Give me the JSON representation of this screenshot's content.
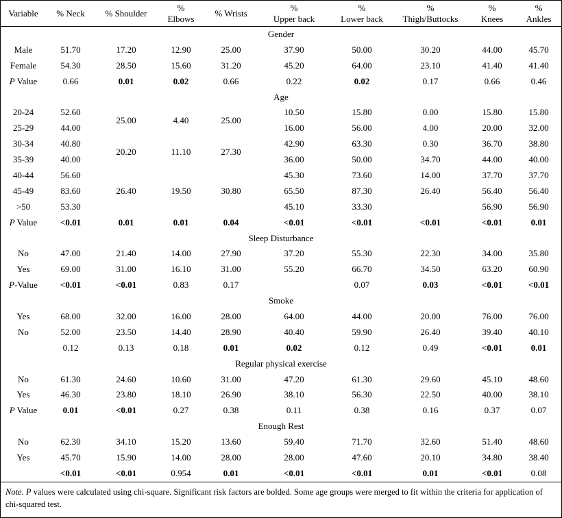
{
  "table": {
    "columns": [
      {
        "lines": [
          "Variable"
        ]
      },
      {
        "lines": [
          "% Neck"
        ]
      },
      {
        "lines": [
          "% Shoulder"
        ]
      },
      {
        "lines": [
          "%",
          "Elbows"
        ]
      },
      {
        "lines": [
          "% Wrists"
        ]
      },
      {
        "lines": [
          "%",
          "Upper back"
        ]
      },
      {
        "lines": [
          "%",
          "Lower back"
        ]
      },
      {
        "lines": [
          "%",
          "Thigh/Buttocks"
        ]
      },
      {
        "lines": [
          "%",
          "Knees"
        ]
      },
      {
        "lines": [
          "%",
          "Ankles"
        ]
      }
    ],
    "sections": [
      {
        "title": "Gender",
        "rows": [
          {
            "label": "Male",
            "cells": [
              {
                "v": "51.70"
              },
              {
                "v": "17.20"
              },
              {
                "v": "12.90"
              },
              {
                "v": "25.00"
              },
              {
                "v": "37.90"
              },
              {
                "v": "50.00"
              },
              {
                "v": "30.20"
              },
              {
                "v": "44.00"
              },
              {
                "v": "45.70"
              }
            ]
          },
          {
            "label": "Female",
            "cells": [
              {
                "v": "54.30"
              },
              {
                "v": "28.50"
              },
              {
                "v": "15.60"
              },
              {
                "v": "31.20"
              },
              {
                "v": "45.20"
              },
              {
                "v": "64.00"
              },
              {
                "v": "23.10"
              },
              {
                "v": "41.40"
              },
              {
                "v": "41.40"
              }
            ]
          },
          {
            "label": "P Value",
            "italic_p": true,
            "cells": [
              {
                "v": "0.66"
              },
              {
                "v": "0.01",
                "b": true
              },
              {
                "v": "0.02",
                "b": true
              },
              {
                "v": "0.66"
              },
              {
                "v": "0.22"
              },
              {
                "v": "0.02",
                "b": true
              },
              {
                "v": "0.17"
              },
              {
                "v": "0.66"
              },
              {
                "v": "0.46"
              }
            ]
          }
        ]
      },
      {
        "title": "Age",
        "rows": [
          {
            "label": "20-24",
            "cells": [
              {
                "v": "52.60"
              },
              {
                "v": "25.00",
                "rs": 2
              },
              {
                "v": "4.40",
                "rs": 2
              },
              {
                "v": "25.00",
                "rs": 2
              },
              {
                "v": "10.50"
              },
              {
                "v": "15.80"
              },
              {
                "v": "0.00"
              },
              {
                "v": "15.80"
              },
              {
                "v": "15.80"
              }
            ]
          },
          {
            "label": "25-29",
            "cells": [
              {
                "v": "44.00"
              },
              null,
              null,
              null,
              {
                "v": "16.00"
              },
              {
                "v": "56.00"
              },
              {
                "v": "4.00"
              },
              {
                "v": "20.00"
              },
              {
                "v": "32.00"
              }
            ]
          },
          {
            "label": "30-34",
            "cells": [
              {
                "v": "40.80"
              },
              {
                "v": "20.20",
                "rs": 2
              },
              {
                "v": "11.10",
                "rs": 2
              },
              {
                "v": "27.30",
                "rs": 2
              },
              {
                "v": "42.90"
              },
              {
                "v": "63.30"
              },
              {
                "v": "0.30"
              },
              {
                "v": "36.70"
              },
              {
                "v": "38.80"
              }
            ]
          },
          {
            "label": "35-39",
            "cells": [
              {
                "v": "40.00"
              },
              null,
              null,
              null,
              {
                "v": "36.00"
              },
              {
                "v": "50.00"
              },
              {
                "v": "34.70"
              },
              {
                "v": "44.00"
              },
              {
                "v": "40.00"
              }
            ]
          },
          {
            "label": "40-44",
            "cells": [
              {
                "v": "56.60"
              },
              {
                "v": "26.40",
                "rs": 3
              },
              {
                "v": "19.50",
                "rs": 3
              },
              {
                "v": "30.80",
                "rs": 3
              },
              {
                "v": "45.30"
              },
              {
                "v": "73.60"
              },
              {
                "v": "14.00"
              },
              {
                "v": "37.70"
              },
              {
                "v": "37.70"
              }
            ]
          },
          {
            "label": "45-49",
            "cells": [
              {
                "v": "83.60"
              },
              null,
              null,
              null,
              {
                "v": "65.50"
              },
              {
                "v": "87.30"
              },
              {
                "v": "26.40"
              },
              {
                "v": "56.40"
              },
              {
                "v": "56.40"
              }
            ]
          },
          {
            "label": ">50",
            "cells": [
              {
                "v": "53.30"
              },
              null,
              null,
              null,
              {
                "v": "45.10"
              },
              {
                "v": "33.30"
              },
              {
                "v": ""
              },
              {
                "v": "56.90"
              },
              {
                "v": "56.90"
              }
            ]
          },
          {
            "label": "P Value",
            "italic_p": true,
            "cells": [
              {
                "v": "<0.01",
                "b": true
              },
              {
                "v": "0.01",
                "b": true
              },
              {
                "v": "0.01",
                "b": true
              },
              {
                "v": "0.04",
                "b": true
              },
              {
                "v": "<0.01",
                "b": true
              },
              {
                "v": "<0.01",
                "b": true
              },
              {
                "v": "<0.01",
                "b": true
              },
              {
                "v": "<0.01",
                "b": true
              },
              {
                "v": "0.01",
                "b": true
              }
            ]
          }
        ]
      },
      {
        "title": "Sleep Disturbance",
        "rows": [
          {
            "label": "No",
            "cells": [
              {
                "v": "47.00"
              },
              {
                "v": "21.40"
              },
              {
                "v": "14.00"
              },
              {
                "v": "27.90"
              },
              {
                "v": "37.20"
              },
              {
                "v": "55.30"
              },
              {
                "v": "22.30"
              },
              {
                "v": "34.00"
              },
              {
                "v": "35.80"
              }
            ]
          },
          {
            "label": "Yes",
            "cells": [
              {
                "v": "69.00"
              },
              {
                "v": "31.00"
              },
              {
                "v": "16.10"
              },
              {
                "v": "31.00"
              },
              {
                "v": "55.20"
              },
              {
                "v": "66.70"
              },
              {
                "v": "34.50"
              },
              {
                "v": "63.20"
              },
              {
                "v": "60.90"
              }
            ]
          },
          {
            "label": "P-Value",
            "italic_p": true,
            "cells": [
              {
                "v": "<0.01",
                "b": true
              },
              {
                "v": "<0.01",
                "b": true
              },
              {
                "v": "0.83"
              },
              {
                "v": "0.17"
              },
              {
                "v": ""
              },
              {
                "v": "0.07"
              },
              {
                "v": "0.03",
                "b": true
              },
              {
                "v": "<0.01",
                "b": true
              },
              {
                "v": "<0.01",
                "b": true
              }
            ]
          }
        ]
      },
      {
        "title": "Smoke",
        "rows": [
          {
            "label": "Yes",
            "cells": [
              {
                "v": "68.00"
              },
              {
                "v": "32.00"
              },
              {
                "v": "16.00"
              },
              {
                "v": "28.00"
              },
              {
                "v": "64.00"
              },
              {
                "v": "44.00"
              },
              {
                "v": "20.00"
              },
              {
                "v": "76.00"
              },
              {
                "v": "76.00"
              }
            ]
          },
          {
            "label": "No",
            "cells": [
              {
                "v": "52.00"
              },
              {
                "v": "23.50"
              },
              {
                "v": "14.40"
              },
              {
                "v": "28.90"
              },
              {
                "v": "40.40"
              },
              {
                "v": "59.90"
              },
              {
                "v": "26.40"
              },
              {
                "v": "39.40"
              },
              {
                "v": "40.10"
              }
            ]
          },
          {
            "label": "",
            "cells": [
              {
                "v": "0.12"
              },
              {
                "v": "0.13"
              },
              {
                "v": "0.18"
              },
              {
                "v": "0.01",
                "b": true
              },
              {
                "v": "0.02",
                "b": true
              },
              {
                "v": "0.12"
              },
              {
                "v": "0.49"
              },
              {
                "v": "<0.01",
                "b": true
              },
              {
                "v": "0.01",
                "b": true
              }
            ]
          }
        ]
      },
      {
        "title": "Regular physical exercise",
        "rows": [
          {
            "label": "No",
            "cells": [
              {
                "v": "61.30"
              },
              {
                "v": "24.60"
              },
              {
                "v": "10.60"
              },
              {
                "v": "31.00"
              },
              {
                "v": "47.20"
              },
              {
                "v": "61.30"
              },
              {
                "v": "29.60"
              },
              {
                "v": "45.10"
              },
              {
                "v": "48.60"
              }
            ]
          },
          {
            "label": "Yes",
            "cells": [
              {
                "v": "46.30"
              },
              {
                "v": "23.80"
              },
              {
                "v": "18.10"
              },
              {
                "v": "26.90"
              },
              {
                "v": "38.10"
              },
              {
                "v": "56.30"
              },
              {
                "v": "22.50"
              },
              {
                "v": "40.00"
              },
              {
                "v": "38.10"
              }
            ]
          },
          {
            "label": "P Value",
            "italic_p": true,
            "cells": [
              {
                "v": "0.01",
                "b": true
              },
              {
                "v": "<0.01",
                "b": true
              },
              {
                "v": "0.27"
              },
              {
                "v": "0.38"
              },
              {
                "v": "0.11"
              },
              {
                "v": "0.38"
              },
              {
                "v": "0.16"
              },
              {
                "v": "0.37"
              },
              {
                "v": "0.07"
              }
            ]
          }
        ]
      },
      {
        "title": "Enough Rest",
        "rows": [
          {
            "label": "No",
            "cells": [
              {
                "v": "62.30"
              },
              {
                "v": "34.10"
              },
              {
                "v": "15.20"
              },
              {
                "v": "13.60"
              },
              {
                "v": "59.40"
              },
              {
                "v": "71.70"
              },
              {
                "v": "32.60"
              },
              {
                "v": "51.40"
              },
              {
                "v": "48.60"
              }
            ]
          },
          {
            "label": "Yes",
            "cells": [
              {
                "v": "45.70"
              },
              {
                "v": "15.90"
              },
              {
                "v": "14.00"
              },
              {
                "v": "28.00"
              },
              {
                "v": "28.00"
              },
              {
                "v": "47.60"
              },
              {
                "v": "20.10"
              },
              {
                "v": "34.80"
              },
              {
                "v": "38.40"
              }
            ]
          },
          {
            "label": "",
            "cells": [
              {
                "v": "<0.01",
                "b": true
              },
              {
                "v": "<0.01",
                "b": true
              },
              {
                "v": "0.954"
              },
              {
                "v": "0.01",
                "b": true
              },
              {
                "v": "<0.01",
                "b": true
              },
              {
                "v": "<0.01",
                "b": true
              },
              {
                "v": "0.01",
                "b": true
              },
              {
                "v": "<0.01",
                "b": true
              },
              {
                "v": "0.08"
              }
            ]
          }
        ]
      }
    ],
    "note_parts": [
      {
        "t": "Note.",
        "i": true
      },
      {
        "t": " ",
        "i": false
      },
      {
        "t": "P",
        "i": true
      },
      {
        "t": " values were calculated using chi-square. Significant risk factors are bolded. Some age groups were merged to fit within the criteria for application of chi-squared test.",
        "i": false
      }
    ]
  }
}
